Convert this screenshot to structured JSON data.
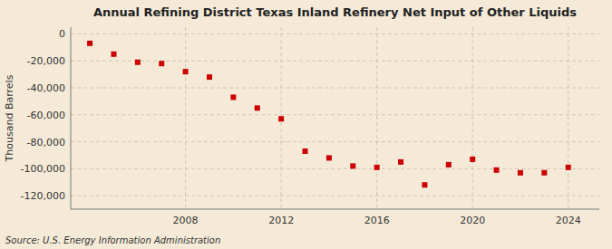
{
  "chart_data": {
    "type": "scatter",
    "title": "Annual Refining District Texas Inland Refinery Net Input of Other Liquids",
    "ylabel": "Thousand Barrels",
    "annotations": [
      "Source: U.S. Energy Information Administration"
    ],
    "x": [
      2004,
      2005,
      2006,
      2007,
      2008,
      2009,
      2010,
      2011,
      2012,
      2013,
      2014,
      2015,
      2016,
      2017,
      2018,
      2019,
      2020,
      2021,
      2022,
      2023,
      2024
    ],
    "values": [
      -7000,
      -15000,
      -21000,
      -22000,
      -28000,
      -32000,
      -47000,
      -55000,
      -63000,
      -87000,
      -92000,
      -98000,
      -99000,
      -95000,
      -112000,
      -97000,
      -93000,
      -101000,
      -103000,
      -103000,
      -99000
    ],
    "color": "#cc0000",
    "marker": "square",
    "xlim": [
      2003.2,
      2025.3
    ],
    "ylim": [
      -130000,
      5000
    ],
    "xticks": [
      2008,
      2012,
      2016,
      2020,
      2024
    ],
    "yticks": [
      0,
      {
        "value": -20000,
        "label": "-20,000"
      },
      {
        "value": -40000,
        "label": "-40,000"
      },
      {
        "value": -60000,
        "label": "-60,000"
      },
      {
        "value": -80000,
        "label": "-80,000"
      },
      {
        "value": -100000,
        "label": "-100,000"
      },
      {
        "value": -120000,
        "label": "-120,000"
      }
    ],
    "grid": true
  }
}
